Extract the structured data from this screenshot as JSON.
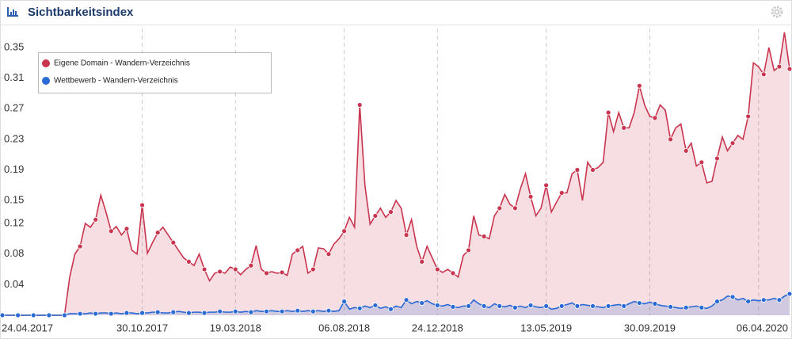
{
  "chart_data": {
    "type": "line",
    "title": "Sichtbarkeitsindex",
    "categories": [
      "24.04.2017",
      null,
      null,
      null,
      null,
      null,
      null,
      null,
      null,
      null,
      null,
      null,
      null,
      null,
      null,
      null,
      null,
      null,
      null,
      null,
      null,
      null,
      null,
      null,
      null,
      null,
      null,
      "30.10.2017",
      null,
      null,
      null,
      null,
      null,
      null,
      null,
      null,
      null,
      null,
      null,
      null,
      null,
      null,
      null,
      null,
      null,
      "19.03.2018",
      null,
      null,
      null,
      null,
      null,
      null,
      null,
      null,
      null,
      null,
      null,
      null,
      null,
      null,
      null,
      null,
      null,
      null,
      null,
      null,
      "06.08.2018",
      null,
      null,
      null,
      null,
      null,
      null,
      null,
      null,
      null,
      null,
      null,
      null,
      null,
      null,
      null,
      null,
      null,
      "24.12.2018",
      null,
      null,
      null,
      null,
      null,
      null,
      null,
      null,
      null,
      null,
      null,
      null,
      null,
      null,
      null,
      null,
      null,
      null,
      null,
      null,
      "13.05.2019",
      null,
      null,
      null,
      null,
      null,
      null,
      null,
      null,
      null,
      null,
      null,
      null,
      null,
      null,
      null,
      null,
      null,
      null,
      null,
      "30.09.2019",
      null,
      null,
      null,
      null,
      null,
      null,
      null,
      null,
      null,
      null,
      null,
      null,
      null,
      null,
      null,
      null,
      null,
      null,
      null,
      null,
      "06.04.2020",
      null,
      null,
      null,
      null,
      null,
      null
    ],
    "series": [
      {
        "name": "Eigene Domain - Wandern-Verzeichnis",
        "color": "#c9344e",
        "values": [
          0,
          0,
          0,
          0,
          0,
          0,
          0,
          0,
          0,
          0,
          0,
          0,
          0,
          0.05,
          0.08,
          0.09,
          0.12,
          0.115,
          0.125,
          0.157,
          0.135,
          0.11,
          0.116,
          0.105,
          0.113,
          0.085,
          0.08,
          0.144,
          0.081,
          0.095,
          0.108,
          0.115,
          0.105,
          0.095,
          0.085,
          0.075,
          0.07,
          0.065,
          0.08,
          0.06,
          0.045,
          0.055,
          0.057,
          0.055,
          0.063,
          0.06,
          0.053,
          0.06,
          0.065,
          0.091,
          0.06,
          0.055,
          0.057,
          0.055,
          0.056,
          0.052,
          0.08,
          0.085,
          0.09,
          0.055,
          0.06,
          0.088,
          0.087,
          0.08,
          0.093,
          0.1,
          0.11,
          0.128,
          0.115,
          0.275,
          0.17,
          0.119,
          0.13,
          0.14,
          0.128,
          0.135,
          0.15,
          0.14,
          0.105,
          0.125,
          0.09,
          0.07,
          0.09,
          0.075,
          0.06,
          0.056,
          0.06,
          0.055,
          0.05,
          0.078,
          0.085,
          0.13,
          0.105,
          0.103,
          0.1,
          0.13,
          0.14,
          0.158,
          0.145,
          0.14,
          0.165,
          0.185,
          0.155,
          0.13,
          0.14,
          0.17,
          0.135,
          0.148,
          0.16,
          0.16,
          0.185,
          0.19,
          0.15,
          0.2,
          0.19,
          0.193,
          0.2,
          0.265,
          0.24,
          0.265,
          0.245,
          0.245,
          0.265,
          0.3,
          0.275,
          0.26,
          0.258,
          0.275,
          0.268,
          0.23,
          0.245,
          0.25,
          0.215,
          0.225,
          0.195,
          0.2,
          0.173,
          0.175,
          0.205,
          0.233,
          0.215,
          0.225,
          0.235,
          0.23,
          0.26,
          0.33,
          0.325,
          0.315,
          0.35,
          0.32,
          0.325,
          0.37,
          0.322
        ]
      },
      {
        "name": "Wettbewerb - Wandern-Verzeichnis",
        "color": "#2a6ad4",
        "values": [
          0,
          0,
          0,
          0,
          0,
          0,
          0,
          0,
          0,
          0,
          0,
          0,
          0,
          0.002,
          0.002,
          0.002,
          0.002,
          0.003,
          0.002,
          0.003,
          0.003,
          0.002,
          0.003,
          0.002,
          0.003,
          0.003,
          0.002,
          0.003,
          0.003,
          0.004,
          0.004,
          0.003,
          0.003,
          0.004,
          0.005,
          0.004,
          0.003,
          0.004,
          0.004,
          0.003,
          0.004,
          0.004,
          0.005,
          0.004,
          0.004,
          0.005,
          0.004,
          0.005,
          0.004,
          0.006,
          0.005,
          0.005,
          0.006,
          0.005,
          0.005,
          0.006,
          0.005,
          0.006,
          0.005,
          0.006,
          0.005,
          0.006,
          0.005,
          0.006,
          0.005,
          0.006,
          0.018,
          0.008,
          0.01,
          0.009,
          0.012,
          0.01,
          0.013,
          0.009,
          0.011,
          0.008,
          0.012,
          0.01,
          0.02,
          0.015,
          0.018,
          0.016,
          0.019,
          0.015,
          0.013,
          0.012,
          0.014,
          0.011,
          0.01,
          0.012,
          0.012,
          0.02,
          0.015,
          0.012,
          0.01,
          0.015,
          0.012,
          0.011,
          0.013,
          0.01,
          0.012,
          0.01,
          0.013,
          0.011,
          0.01,
          0.012,
          0.008,
          0.009,
          0.012,
          0.014,
          0.016,
          0.012,
          0.014,
          0.013,
          0.012,
          0.011,
          0.01,
          0.012,
          0.013,
          0.014,
          0.012,
          0.015,
          0.018,
          0.016,
          0.015,
          0.017,
          0.015,
          0.013,
          0.012,
          0.011,
          0.01,
          0.009,
          0.01,
          0.011,
          0.012,
          0.01,
          0.009,
          0.012,
          0.018,
          0.02,
          0.025,
          0.024,
          0.02,
          0.022,
          0.018,
          0.02,
          0.019,
          0.02,
          0.02,
          0.022,
          0.02,
          0.025,
          0.028
        ]
      }
    ],
    "ylim": [
      0,
      0.375
    ],
    "yticks": [
      0.04,
      0.08,
      0.12,
      0.15,
      0.19,
      0.23,
      0.27,
      0.31,
      0.35
    ],
    "area": true
  }
}
